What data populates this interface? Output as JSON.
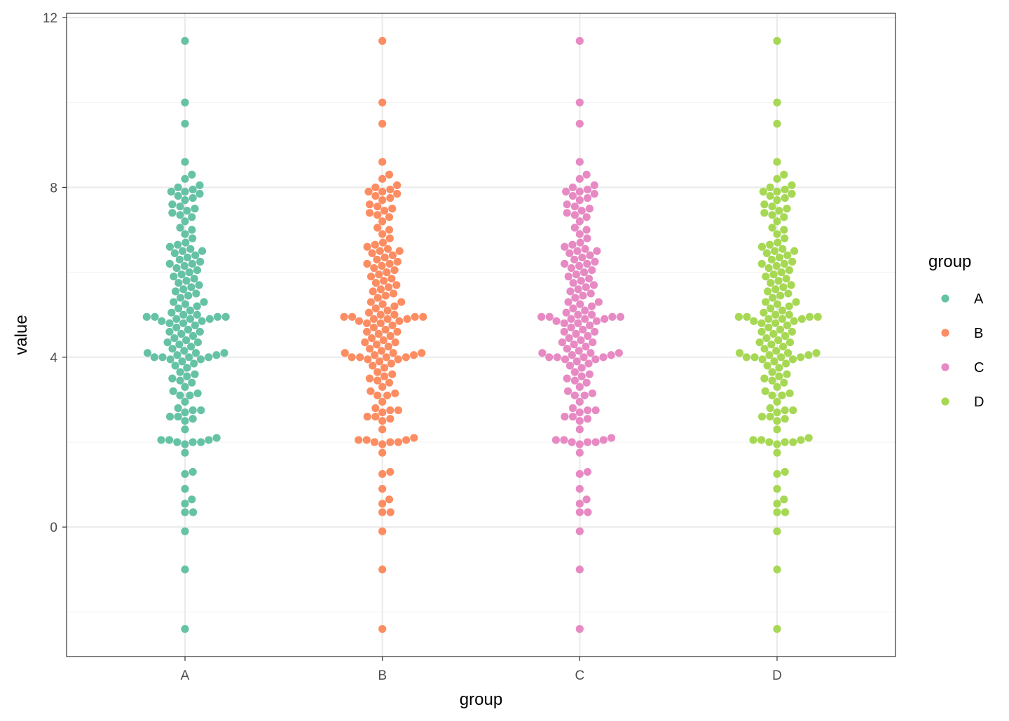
{
  "chart_data": {
    "type": "scatter",
    "subtype": "beeswarm",
    "title": "",
    "xlabel": "group",
    "ylabel": "value",
    "categories": [
      "A",
      "B",
      "C",
      "D"
    ],
    "ylim": [
      -3.05,
      12.1
    ],
    "y_ticks": [
      0,
      4,
      8,
      12
    ],
    "y_tick_labels": [
      "0",
      "4",
      "8",
      "12"
    ],
    "grid": true,
    "legend": {
      "title": "group",
      "position": "right",
      "entries": [
        "A",
        "B",
        "C",
        "D"
      ]
    },
    "colors": {
      "A": "#66c2a5",
      "B": "#fc8d62",
      "C": "#e78ac3",
      "D": "#a6d854"
    },
    "theme": {
      "panel_border": "#333333",
      "grid_major": "#ebebeb",
      "grid_minor": "#f2f2f2",
      "background": "#ffffff"
    },
    "series_note": "Each group shows the same set of values.",
    "series": [
      {
        "name": "A",
        "values": [
          -2.4,
          -1.0,
          -0.1,
          0.35,
          0.35,
          0.55,
          0.65,
          0.9,
          1.25,
          1.3,
          1.75,
          1.95,
          2.0,
          2.0,
          2.0,
          2.05,
          2.05,
          2.05,
          2.1,
          2.3,
          2.5,
          2.55,
          2.6,
          2.6,
          2.7,
          2.75,
          2.75,
          2.8,
          2.95,
          3.1,
          3.1,
          3.15,
          3.2,
          3.3,
          3.4,
          3.45,
          3.5,
          3.55,
          3.6,
          3.65,
          3.75,
          3.8,
          3.85,
          3.9,
          3.95,
          3.95,
          4.0,
          4.0,
          4.0,
          4.0,
          4.05,
          4.05,
          4.1,
          4.1,
          4.1,
          4.15,
          4.2,
          4.25,
          4.3,
          4.35,
          4.35,
          4.4,
          4.45,
          4.5,
          4.55,
          4.6,
          4.6,
          4.65,
          4.7,
          4.75,
          4.8,
          4.8,
          4.85,
          4.85,
          4.9,
          4.9,
          4.9,
          4.95,
          4.95,
          4.95,
          4.95,
          5.0,
          5.0,
          5.05,
          5.1,
          5.15,
          5.2,
          5.25,
          5.3,
          5.3,
          5.4,
          5.45,
          5.5,
          5.55,
          5.6,
          5.65,
          5.7,
          5.75,
          5.8,
          5.85,
          5.9,
          5.95,
          6.0,
          6.05,
          6.1,
          6.15,
          6.2,
          6.2,
          6.25,
          6.3,
          6.35,
          6.4,
          6.45,
          6.5,
          6.5,
          6.55,
          6.6,
          6.65,
          6.7,
          6.8,
          6.9,
          7.0,
          7.05,
          7.2,
          7.3,
          7.35,
          7.4,
          7.45,
          7.5,
          7.55,
          7.6,
          7.7,
          7.75,
          7.8,
          7.85,
          7.9,
          7.9,
          7.95,
          8.0,
          8.05,
          8.2,
          8.3,
          8.6,
          9.5,
          10.0,
          11.45
        ]
      },
      {
        "name": "B",
        "values": [
          -2.4,
          -1.0,
          -0.1,
          0.35,
          0.35,
          0.55,
          0.65,
          0.9,
          1.25,
          1.3,
          1.75,
          1.95,
          2.0,
          2.0,
          2.0,
          2.05,
          2.05,
          2.05,
          2.1,
          2.3,
          2.5,
          2.55,
          2.6,
          2.6,
          2.7,
          2.75,
          2.75,
          2.8,
          2.95,
          3.1,
          3.1,
          3.15,
          3.2,
          3.3,
          3.4,
          3.45,
          3.5,
          3.55,
          3.6,
          3.65,
          3.75,
          3.8,
          3.85,
          3.9,
          3.95,
          3.95,
          4.0,
          4.0,
          4.0,
          4.0,
          4.05,
          4.05,
          4.1,
          4.1,
          4.1,
          4.15,
          4.2,
          4.25,
          4.3,
          4.35,
          4.35,
          4.4,
          4.45,
          4.5,
          4.55,
          4.6,
          4.6,
          4.65,
          4.7,
          4.75,
          4.8,
          4.8,
          4.85,
          4.85,
          4.9,
          4.9,
          4.9,
          4.95,
          4.95,
          4.95,
          4.95,
          5.0,
          5.0,
          5.05,
          5.1,
          5.15,
          5.2,
          5.25,
          5.3,
          5.3,
          5.4,
          5.45,
          5.5,
          5.55,
          5.6,
          5.65,
          5.7,
          5.75,
          5.8,
          5.85,
          5.9,
          5.95,
          6.0,
          6.05,
          6.1,
          6.15,
          6.2,
          6.2,
          6.25,
          6.3,
          6.35,
          6.4,
          6.45,
          6.5,
          6.5,
          6.55,
          6.6,
          6.65,
          6.7,
          6.8,
          6.9,
          7.0,
          7.05,
          7.2,
          7.3,
          7.35,
          7.4,
          7.45,
          7.5,
          7.55,
          7.6,
          7.7,
          7.75,
          7.8,
          7.85,
          7.9,
          7.9,
          7.95,
          8.0,
          8.05,
          8.2,
          8.3,
          8.6,
          9.5,
          10.0,
          11.45
        ]
      },
      {
        "name": "C",
        "values": [
          -2.4,
          -1.0,
          -0.1,
          0.35,
          0.35,
          0.55,
          0.65,
          0.9,
          1.25,
          1.3,
          1.75,
          1.95,
          2.0,
          2.0,
          2.0,
          2.05,
          2.05,
          2.05,
          2.1,
          2.3,
          2.5,
          2.55,
          2.6,
          2.6,
          2.7,
          2.75,
          2.75,
          2.8,
          2.95,
          3.1,
          3.1,
          3.15,
          3.2,
          3.3,
          3.4,
          3.45,
          3.5,
          3.55,
          3.6,
          3.65,
          3.75,
          3.8,
          3.85,
          3.9,
          3.95,
          3.95,
          4.0,
          4.0,
          4.0,
          4.0,
          4.05,
          4.05,
          4.1,
          4.1,
          4.1,
          4.15,
          4.2,
          4.25,
          4.3,
          4.35,
          4.35,
          4.4,
          4.45,
          4.5,
          4.55,
          4.6,
          4.6,
          4.65,
          4.7,
          4.75,
          4.8,
          4.8,
          4.85,
          4.85,
          4.9,
          4.9,
          4.9,
          4.95,
          4.95,
          4.95,
          4.95,
          5.0,
          5.0,
          5.05,
          5.1,
          5.15,
          5.2,
          5.25,
          5.3,
          5.3,
          5.4,
          5.45,
          5.5,
          5.55,
          5.6,
          5.65,
          5.7,
          5.75,
          5.8,
          5.85,
          5.9,
          5.95,
          6.0,
          6.05,
          6.1,
          6.15,
          6.2,
          6.2,
          6.25,
          6.3,
          6.35,
          6.4,
          6.45,
          6.5,
          6.5,
          6.55,
          6.6,
          6.65,
          6.7,
          6.8,
          6.9,
          7.0,
          7.05,
          7.2,
          7.3,
          7.35,
          7.4,
          7.45,
          7.5,
          7.55,
          7.6,
          7.7,
          7.75,
          7.8,
          7.85,
          7.9,
          7.9,
          7.95,
          8.0,
          8.05,
          8.2,
          8.3,
          8.6,
          9.5,
          10.0,
          11.45
        ]
      },
      {
        "name": "D",
        "values": [
          -2.4,
          -1.0,
          -0.1,
          0.35,
          0.35,
          0.55,
          0.65,
          0.9,
          1.25,
          1.3,
          1.75,
          1.95,
          2.0,
          2.0,
          2.0,
          2.05,
          2.05,
          2.05,
          2.1,
          2.3,
          2.5,
          2.55,
          2.6,
          2.6,
          2.7,
          2.75,
          2.75,
          2.8,
          2.95,
          3.1,
          3.1,
          3.15,
          3.2,
          3.3,
          3.4,
          3.45,
          3.5,
          3.55,
          3.6,
          3.65,
          3.75,
          3.8,
          3.85,
          3.9,
          3.95,
          3.95,
          4.0,
          4.0,
          4.0,
          4.0,
          4.05,
          4.05,
          4.1,
          4.1,
          4.1,
          4.15,
          4.2,
          4.25,
          4.3,
          4.35,
          4.35,
          4.4,
          4.45,
          4.5,
          4.55,
          4.6,
          4.6,
          4.65,
          4.7,
          4.75,
          4.8,
          4.8,
          4.85,
          4.85,
          4.9,
          4.9,
          4.9,
          4.95,
          4.95,
          4.95,
          4.95,
          5.0,
          5.0,
          5.05,
          5.1,
          5.15,
          5.2,
          5.25,
          5.3,
          5.3,
          5.4,
          5.45,
          5.5,
          5.55,
          5.6,
          5.65,
          5.7,
          5.75,
          5.8,
          5.85,
          5.9,
          5.95,
          6.0,
          6.05,
          6.1,
          6.15,
          6.2,
          6.2,
          6.25,
          6.3,
          6.35,
          6.4,
          6.45,
          6.5,
          6.5,
          6.55,
          6.6,
          6.65,
          6.7,
          6.8,
          6.9,
          7.0,
          7.05,
          7.2,
          7.3,
          7.35,
          7.4,
          7.45,
          7.5,
          7.55,
          7.6,
          7.7,
          7.75,
          7.8,
          7.85,
          7.9,
          7.9,
          7.95,
          8.0,
          8.05,
          8.2,
          8.3,
          8.6,
          9.5,
          10.0,
          11.45
        ]
      }
    ]
  }
}
